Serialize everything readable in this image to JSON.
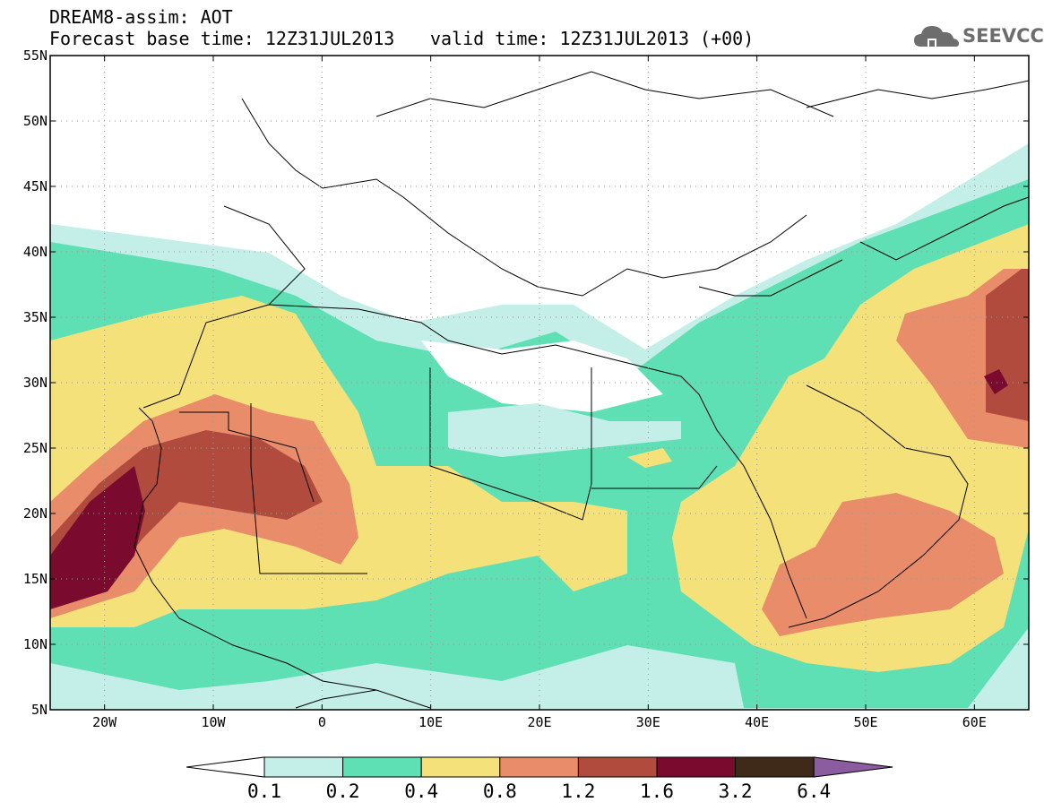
{
  "header": {
    "title": "DREAM8-assim: AOT",
    "base_time": "Forecast base time: 12Z31JUL2013",
    "valid_time": "valid time: 12Z31JUL2013 (+00)"
  },
  "logo": {
    "text": "SEEVCCC",
    "icon": "cloud-icon"
  },
  "map": {
    "lat_labels": [
      "5N",
      "10N",
      "15N",
      "20N",
      "25N",
      "30N",
      "35N",
      "40N",
      "45N",
      "50N",
      "55N"
    ],
    "lon_labels": [
      "20W",
      "10W",
      "0",
      "10E",
      "20E",
      "30E",
      "40E",
      "50E",
      "60E"
    ],
    "lon_range": [
      -25,
      65
    ],
    "lat_range": [
      5,
      55
    ]
  },
  "colorbar": {
    "labels": [
      "0.1",
      "0.2",
      "0.4",
      "0.8",
      "1.2",
      "1.6",
      "3.2",
      "6.4"
    ],
    "colors": [
      "#ffffff",
      "#c3efe8",
      "#5ee0b4",
      "#f5e17a",
      "#e98c6a",
      "#b04b3e",
      "#7a0b2e",
      "#3f2a1a",
      "#8c5ca0"
    ]
  }
}
